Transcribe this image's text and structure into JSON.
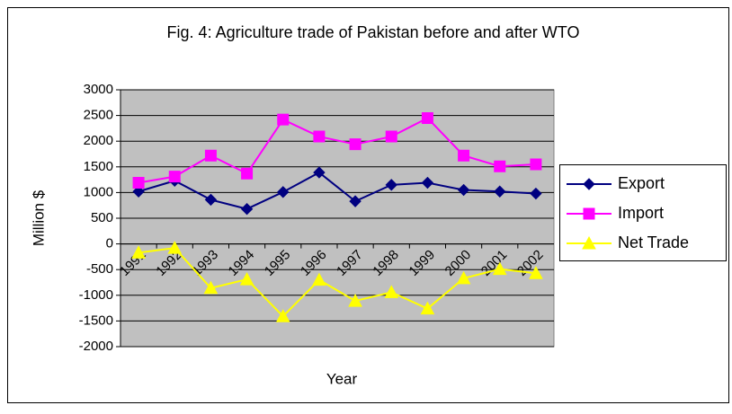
{
  "chart_data": {
    "type": "line",
    "title": "Fig. 4: Agriculture trade of Pakistan before and after WTO",
    "x_label": "Year",
    "y_label": "Million $",
    "categories": [
      "1991",
      "1992",
      "1993",
      "1994",
      "1995",
      "1996",
      "1997",
      "1998",
      "1999",
      "2000",
      "2001",
      "2002"
    ],
    "series": [
      {
        "name": "Export",
        "color": "#000080",
        "marker": "diamond",
        "values": [
          1020,
          1230,
          860,
          680,
          1010,
          1390,
          830,
          1150,
          1190,
          1050,
          1020,
          980
        ]
      },
      {
        "name": "Import",
        "color": "#ff00ff",
        "marker": "square",
        "values": [
          1190,
          1310,
          1720,
          1370,
          2420,
          2090,
          1940,
          2090,
          2450,
          1720,
          1510,
          1550
        ]
      },
      {
        "name": "Net Trade",
        "color": "#ffff00",
        "marker": "triangle",
        "values": [
          -170,
          -80,
          -860,
          -690,
          -1410,
          -700,
          -1110,
          -940,
          -1260,
          -670,
          -490,
          -570
        ]
      }
    ],
    "ylim": [
      -2000,
      3000
    ],
    "yticks": [
      -2000,
      -1500,
      -1000,
      -500,
      0,
      500,
      1000,
      1500,
      2000,
      2500,
      3000
    ],
    "grid": true,
    "legend": "right"
  }
}
